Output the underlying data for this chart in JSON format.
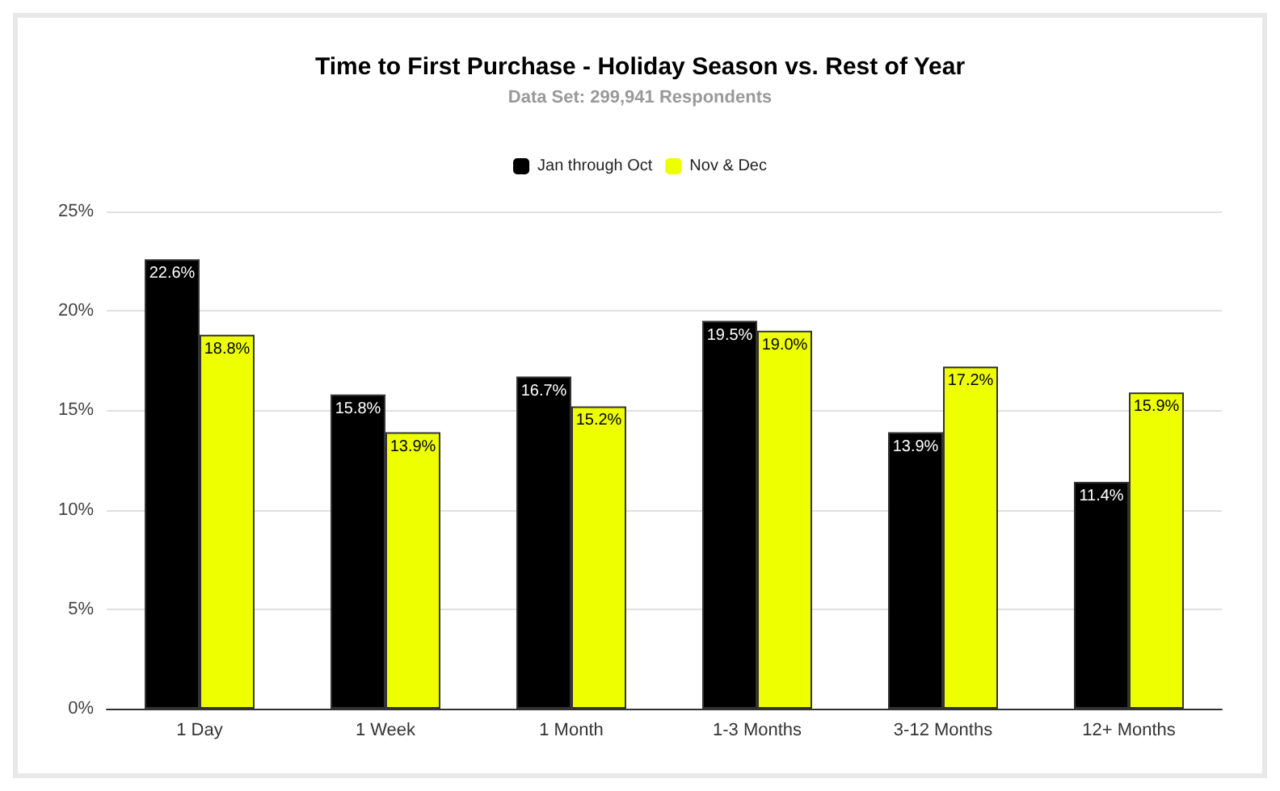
{
  "chart_data": {
    "type": "bar",
    "title": "Time to First Purchase - Holiday Season vs. Rest of Year",
    "subtitle": "Data Set: 299,941 Respondents",
    "categories": [
      "1 Day",
      "1 Week",
      "1 Month",
      "1-3 Months",
      "3-12 Months",
      "12+ Months"
    ],
    "series": [
      {
        "name": "Jan through Oct",
        "color": "#000000",
        "values": [
          22.6,
          15.8,
          16.7,
          19.5,
          13.9,
          11.4
        ],
        "value_labels": [
          "22.6%",
          "15.8%",
          "16.7%",
          "19.5%",
          "13.9%",
          "11.4%"
        ]
      },
      {
        "name": "Nov & Dec",
        "color": "#eeff00",
        "values": [
          18.8,
          13.9,
          15.2,
          19.0,
          17.2,
          15.9
        ],
        "value_labels": [
          "18.8%",
          "13.9%",
          "15.2%",
          "19.0%",
          "17.2%",
          "15.9%"
        ]
      }
    ],
    "ylim": [
      0,
      25
    ],
    "yticks": [
      {
        "value": 0,
        "label": "0%"
      },
      {
        "value": 5,
        "label": "5%"
      },
      {
        "value": 10,
        "label": "10%"
      },
      {
        "value": 15,
        "label": "15%"
      },
      {
        "value": 20,
        "label": "20%"
      },
      {
        "value": 25,
        "label": "25%"
      }
    ],
    "grid": "y",
    "legend": "top"
  }
}
